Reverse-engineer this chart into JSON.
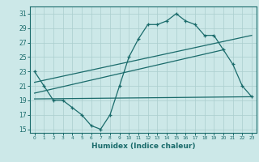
{
  "title": "",
  "xlabel": "Humidex (Indice chaleur)",
  "ylabel": "",
  "bg_color": "#cce8e8",
  "line_color": "#1a6b6b",
  "grid_color": "#aacece",
  "xlim": [
    -0.5,
    23.5
  ],
  "ylim": [
    14.5,
    32
  ],
  "xticks": [
    0,
    1,
    2,
    3,
    4,
    5,
    6,
    7,
    8,
    9,
    10,
    11,
    12,
    13,
    14,
    15,
    16,
    17,
    18,
    19,
    20,
    21,
    22,
    23
  ],
  "yticks": [
    15,
    17,
    19,
    21,
    23,
    25,
    27,
    29,
    31
  ],
  "main_x": [
    0,
    1,
    2,
    3,
    4,
    5,
    6,
    7,
    8,
    9,
    10,
    11,
    12,
    13,
    14,
    15,
    16,
    17,
    18,
    19,
    20,
    21,
    22,
    23
  ],
  "main_y": [
    23,
    21,
    19,
    19,
    18,
    17,
    15.5,
    15,
    17,
    21,
    25,
    27.5,
    29.5,
    29.5,
    30,
    31,
    30,
    29.5,
    28,
    28,
    26,
    24,
    21,
    19.5
  ],
  "trend1_x": [
    0,
    23
  ],
  "trend1_y": [
    19.2,
    19.5
  ],
  "trend2_x": [
    0,
    20
  ],
  "trend2_y": [
    20.0,
    26.0
  ],
  "trend3_x": [
    0,
    23
  ],
  "trend3_y": [
    21.5,
    28.0
  ]
}
